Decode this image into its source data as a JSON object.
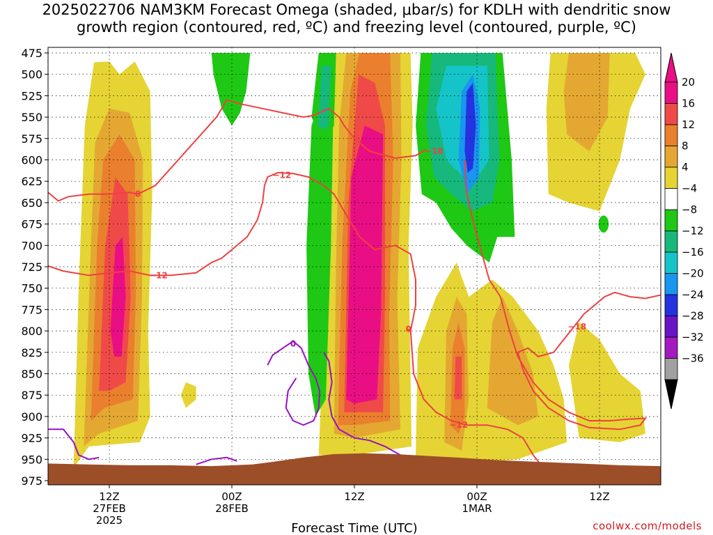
{
  "title": {
    "line1": "2025022706 NAM3KM Forecast Omega (shaded, μbar/s) for KDLH with dendritic snow",
    "line2": "growth region (contoured, red, ºC) and freezing level (contoured, purple, ºC)"
  },
  "credit": "coolwx.com/models",
  "chart_data": {
    "type": "heatmap",
    "xlabel": "Forecast Time (UTC)",
    "ylabel": "",
    "ylim": [
      975,
      475
    ],
    "y_ticks": [
      "475",
      "500",
      "525",
      "550",
      "575",
      "600",
      "625",
      "650",
      "675",
      "700",
      "725",
      "750",
      "775",
      "800",
      "825",
      "850",
      "875",
      "900",
      "925",
      "950",
      "975"
    ],
    "x_ticks": [
      {
        "hour": 12,
        "line1": "12Z",
        "line2": "27FEB",
        "line3": "2025"
      },
      {
        "hour": 24,
        "line1": "00Z",
        "line2": "28FEB",
        "line3": ""
      },
      {
        "hour": 36,
        "line1": "12Z",
        "line2": "",
        "line3": ""
      },
      {
        "hour": 48,
        "line1": "00Z",
        "line2": "1MAR",
        "line3": ""
      },
      {
        "hour": 60,
        "line1": "12Z",
        "line2": "",
        "line3": ""
      }
    ],
    "xlim": [
      6,
      66
    ],
    "colorbar": {
      "labels": [
        "20",
        "16",
        "12",
        "8",
        "4",
        "−4",
        "−8",
        "−12",
        "−16",
        "−20",
        "−24",
        "−28",
        "−32",
        "−36"
      ],
      "colors": [
        "#ea0e84",
        "#f04a48",
        "#ea7f2d",
        "#e4a832",
        "#e5d434",
        "#ffffff",
        "#1ec814",
        "#16b87c",
        "#15c4c8",
        "#1896f0",
        "#2432e0",
        "#6a14c8",
        "#a41ac0",
        "#a0a0a0"
      ],
      "max_arrow_color": "#ea0e84",
      "min_arrow_color": "#000000"
    },
    "omega_regions": [
      {
        "name": "omega-max-27feb",
        "center_hour": 13.2,
        "center_hpa": 725,
        "peak": 22
      },
      {
        "name": "omega-max-28feb-12z",
        "center_hour": 37,
        "center_hpa": 650,
        "peak": 24
      },
      {
        "name": "omega-secondary-1mar",
        "center_hour": 46.5,
        "center_hpa": 840,
        "peak": 17
      },
      {
        "name": "omega-min-1mar",
        "center_hour": 47.5,
        "center_hpa": 575,
        "peak": -22
      }
    ],
    "dendritic_contours": [
      {
        "label": "−12",
        "hpa": 725
      },
      {
        "label": "−12",
        "hpa": 615
      },
      {
        "label": "−18",
        "hpa": 590
      },
      {
        "label": "−18",
        "hpa": 800
      },
      {
        "label": "−12",
        "hpa": 905
      }
    ],
    "freezing_contour_label": "0",
    "terrain_color": "#9c4e29",
    "contour_color_red": "#ee4040",
    "contour_color_purple": "#9a10c0"
  }
}
